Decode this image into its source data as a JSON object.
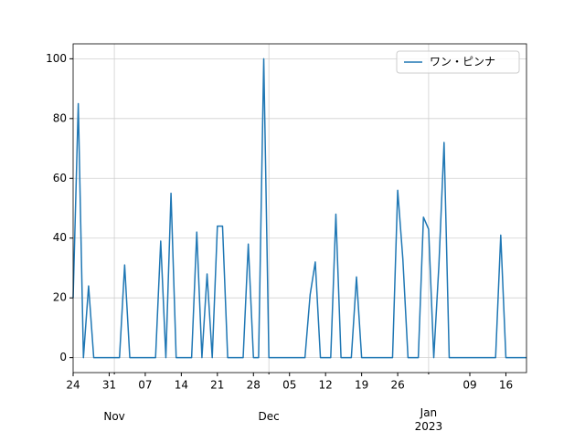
{
  "chart_data": {
    "type": "line",
    "x": [
      "Oct 24",
      "Oct 25",
      "Oct 26",
      "Oct 27",
      "Oct 28",
      "Oct 29",
      "Oct 30",
      "Oct 31",
      "Nov 1",
      "Nov 2",
      "Nov 3",
      "Nov 4",
      "Nov 5",
      "Nov 6",
      "Nov 7",
      "Nov 8",
      "Nov 9",
      "Nov 10",
      "Nov 11",
      "Nov 12",
      "Nov 13",
      "Nov 14",
      "Nov 15",
      "Nov 16",
      "Nov 17",
      "Nov 18",
      "Nov 19",
      "Nov 20",
      "Nov 21",
      "Nov 22",
      "Nov 23",
      "Nov 24",
      "Nov 25",
      "Nov 26",
      "Nov 27",
      "Nov 28",
      "Nov 29",
      "Nov 30",
      "Dec 1",
      "Dec 2",
      "Dec 3",
      "Dec 4",
      "Dec 5",
      "Dec 6",
      "Dec 7",
      "Dec 8",
      "Dec 9",
      "Dec 10",
      "Dec 11",
      "Dec 12",
      "Dec 13",
      "Dec 14",
      "Dec 15",
      "Dec 16",
      "Dec 17",
      "Dec 18",
      "Dec 19",
      "Dec 20",
      "Dec 21",
      "Dec 22",
      "Dec 23",
      "Dec 24",
      "Dec 25",
      "Dec 26",
      "Dec 27",
      "Dec 28",
      "Dec 29",
      "Dec 30",
      "Dec 31",
      "Jan 1",
      "Jan 2",
      "Jan 3",
      "Jan 4",
      "Jan 5",
      "Jan 6",
      "Jan 7",
      "Jan 8",
      "Jan 9",
      "Jan 10",
      "Jan 11",
      "Jan 12",
      "Jan 13",
      "Jan 14",
      "Jan 15",
      "Jan 16",
      "Jan 17",
      "Jan 18",
      "Jan 19",
      "Jan 20"
    ],
    "series": [
      {
        "name": "ワン・ピンナ",
        "color": "#1f77b4",
        "values": [
          20,
          85,
          0,
          24,
          0,
          0,
          0,
          0,
          0,
          0,
          31,
          0,
          0,
          0,
          0,
          0,
          0,
          39,
          0,
          55,
          0,
          0,
          0,
          0,
          42,
          0,
          28,
          0,
          44,
          44,
          0,
          0,
          0,
          0,
          38,
          0,
          0,
          100,
          0,
          0,
          0,
          0,
          0,
          0,
          0,
          0,
          21,
          32,
          0,
          0,
          0,
          48,
          0,
          0,
          0,
          27,
          0,
          0,
          0,
          0,
          0,
          0,
          0,
          56,
          33,
          0,
          0,
          0,
          47,
          43,
          0,
          31,
          72,
          0,
          0,
          0,
          0,
          0,
          0,
          0,
          0,
          0,
          0,
          41,
          0,
          0,
          0,
          0,
          0
        ]
      }
    ],
    "xlim": [
      "Oct 24",
      "Jan 20"
    ],
    "xticks": [
      {
        "value": "Oct 24",
        "label": "24"
      },
      {
        "value": "Oct 31",
        "label": "31"
      },
      {
        "value": "Nov 7",
        "label": "07"
      },
      {
        "value": "Nov 14",
        "label": "14"
      },
      {
        "value": "Nov 21",
        "label": "21"
      },
      {
        "value": "Nov 28",
        "label": "28"
      },
      {
        "value": "Dec 5",
        "label": "05"
      },
      {
        "value": "Dec 12",
        "label": "12"
      },
      {
        "value": "Dec 19",
        "label": "19"
      },
      {
        "value": "Dec 26",
        "label": "26"
      },
      {
        "value": "Jan 9",
        "label": "09"
      },
      {
        "value": "Jan 16",
        "label": "16"
      }
    ],
    "minor_xticks": [
      {
        "value": "Nov 1",
        "label": "Nov"
      },
      {
        "value": "Dec 1",
        "label": "Dec"
      },
      {
        "value": "Jan 1",
        "label": "Jan\n2023"
      }
    ],
    "ylim": [
      -5,
      105
    ],
    "yticks": [
      0,
      20,
      40,
      60,
      80,
      100
    ],
    "grid": true,
    "legend": "upper right"
  }
}
